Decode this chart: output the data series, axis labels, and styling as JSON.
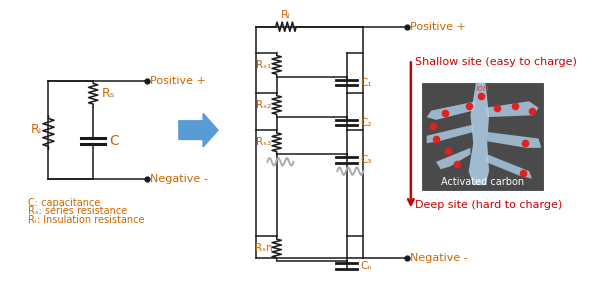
{
  "bg_color": "#ffffff",
  "oc": "#cc6600",
  "lc": "#1a1a1a",
  "rc": "#cc0000",
  "ac": "#5b9bd5",
  "wc": "#aaaaaa",
  "positive_label": "Positive +",
  "negative_label": "Negative -",
  "shallow_label": "Shallow site (easy to charge)",
  "deep_label": "Deep site (hard to charge)",
  "ac_label": "Activated carbon",
  "ion_label": "ion",
  "Ri_label": "Rᵢ",
  "Rs_label": "Rₛ",
  "C_label": "C",
  "Rs1_label": "Rₛ₁",
  "Rs2_label": "Rₛ₂",
  "Rs3_label": "Rₛ₃",
  "Rsn_label": "Rₛn",
  "Ri2_label": "Rᵢ",
  "C1_label": "C₁",
  "C2_label": "C₂",
  "C3_label": "C₃",
  "Cn_label": "Cₙ",
  "leg_C": "C: capacitance",
  "leg_Rs": "Rₛ: series resistance",
  "leg_Ri": "Rᵢ: Insulation resistance"
}
